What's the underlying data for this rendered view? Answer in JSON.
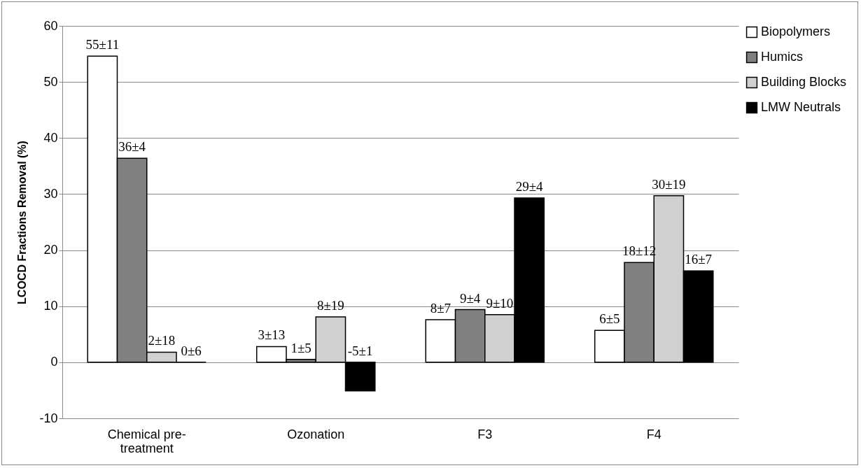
{
  "chart_data": {
    "type": "bar",
    "ylabel": "LCOCD Fractions Removal (%)",
    "categories": [
      "Chemical pre-treatment",
      "Ozonation",
      "F3",
      "F4"
    ],
    "series": [
      {
        "name": "Biopolymers",
        "color": "#ffffff",
        "values": [
          54.6,
          2.8,
          7.6,
          5.7
        ],
        "value_labels": [
          "55±11",
          "3±13",
          "8±7",
          "6±5"
        ]
      },
      {
        "name": "Humics",
        "color": "#808080",
        "values": [
          36.4,
          0.5,
          9.4,
          17.8
        ],
        "value_labels": [
          "36±4",
          "1±5",
          "9±4",
          "18±12"
        ]
      },
      {
        "name": "Building Blocks",
        "color": "#d0d0d0",
        "values": [
          1.8,
          8.1,
          8.5,
          29.7
        ],
        "value_labels": [
          "2±18",
          "8±19",
          "9±10",
          "30±19"
        ]
      },
      {
        "name": "LMW Neutrals",
        "color": "#000000",
        "values": [
          0,
          -5.1,
          29.3,
          16.3
        ],
        "value_labels": [
          "0±6",
          "-5±1",
          "29±4",
          "16±7"
        ]
      }
    ],
    "ylim": [
      -10,
      60
    ],
    "yticks": [
      -10,
      0,
      10,
      20,
      30,
      40,
      50,
      60
    ],
    "grid": "y",
    "legend": "right"
  }
}
